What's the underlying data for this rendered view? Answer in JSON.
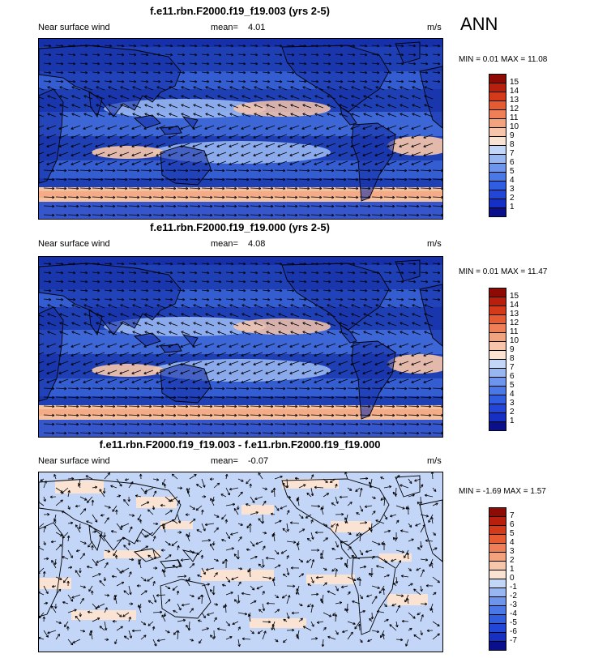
{
  "season": "ANN",
  "palettes": {
    "abs": [
      "#0a0f8c",
      "#1730c4",
      "#2146d8",
      "#2f5fe0",
      "#4a78e6",
      "#6d95ec",
      "#97b6f2",
      "#c4d6f7",
      "#fbe3d4",
      "#f7c6aa",
      "#f3a27e",
      "#ee7f56",
      "#e65b32",
      "#d43a1a",
      "#b81f0c",
      "#8e0a05"
    ],
    "diff": [
      "#0a0f8c",
      "#1730c4",
      "#2146d8",
      "#2f5fe0",
      "#4a78e6",
      "#6d95ec",
      "#97b6f2",
      "#c4d6f7",
      "#fbe3d4",
      "#f7c6aa",
      "#f3a27e",
      "#ee7f56",
      "#e65b32",
      "#d43a1a",
      "#b81f0c",
      "#8e0a05"
    ]
  },
  "panels": [
    {
      "title": "f.e11.rbn.F2000.f19_f19.003 (yrs 2-5)",
      "left_label": "Near surface wind",
      "mean_label": "mean=",
      "mean_value": "4.01",
      "units": "m/s",
      "min_label": "MIN =",
      "min_value": "0.01",
      "max_label": "MAX =",
      "max_value": "11.08",
      "palette": "abs",
      "colorbar_ticks": [
        "15",
        "14",
        "13",
        "12",
        "11",
        "10",
        "9",
        "8",
        "7",
        "6",
        "5",
        "4",
        "3",
        "2",
        "1"
      ]
    },
    {
      "title": "f.e11.rbn.F2000.f19_f19.000 (yrs 2-5)",
      "left_label": "Near surface wind",
      "mean_label": "mean=",
      "mean_value": "4.08",
      "units": "m/s",
      "min_label": "MIN =",
      "min_value": "0.01",
      "max_label": "MAX =",
      "max_value": "11.47",
      "palette": "abs",
      "colorbar_ticks": [
        "15",
        "14",
        "13",
        "12",
        "11",
        "10",
        "9",
        "8",
        "7",
        "6",
        "5",
        "4",
        "3",
        "2",
        "1"
      ]
    },
    {
      "title": "f.e11.rbn.F2000.f19_f19.003 - f.e11.rbn.F2000.f19_f19.000",
      "left_label": "Near surface wind",
      "mean_label": "mean=",
      "mean_value": "-0.07",
      "units": "m/s",
      "min_label": "MIN =",
      "min_value": "-1.69",
      "max_label": "MAX =",
      "max_value": "1.57",
      "palette": "diff",
      "colorbar_ticks": [
        "7",
        "6",
        "5",
        "4",
        "3",
        "2",
        "1",
        "0",
        "-1",
        "-2",
        "-3",
        "-4",
        "-5",
        "-6",
        "-7"
      ]
    }
  ]
}
